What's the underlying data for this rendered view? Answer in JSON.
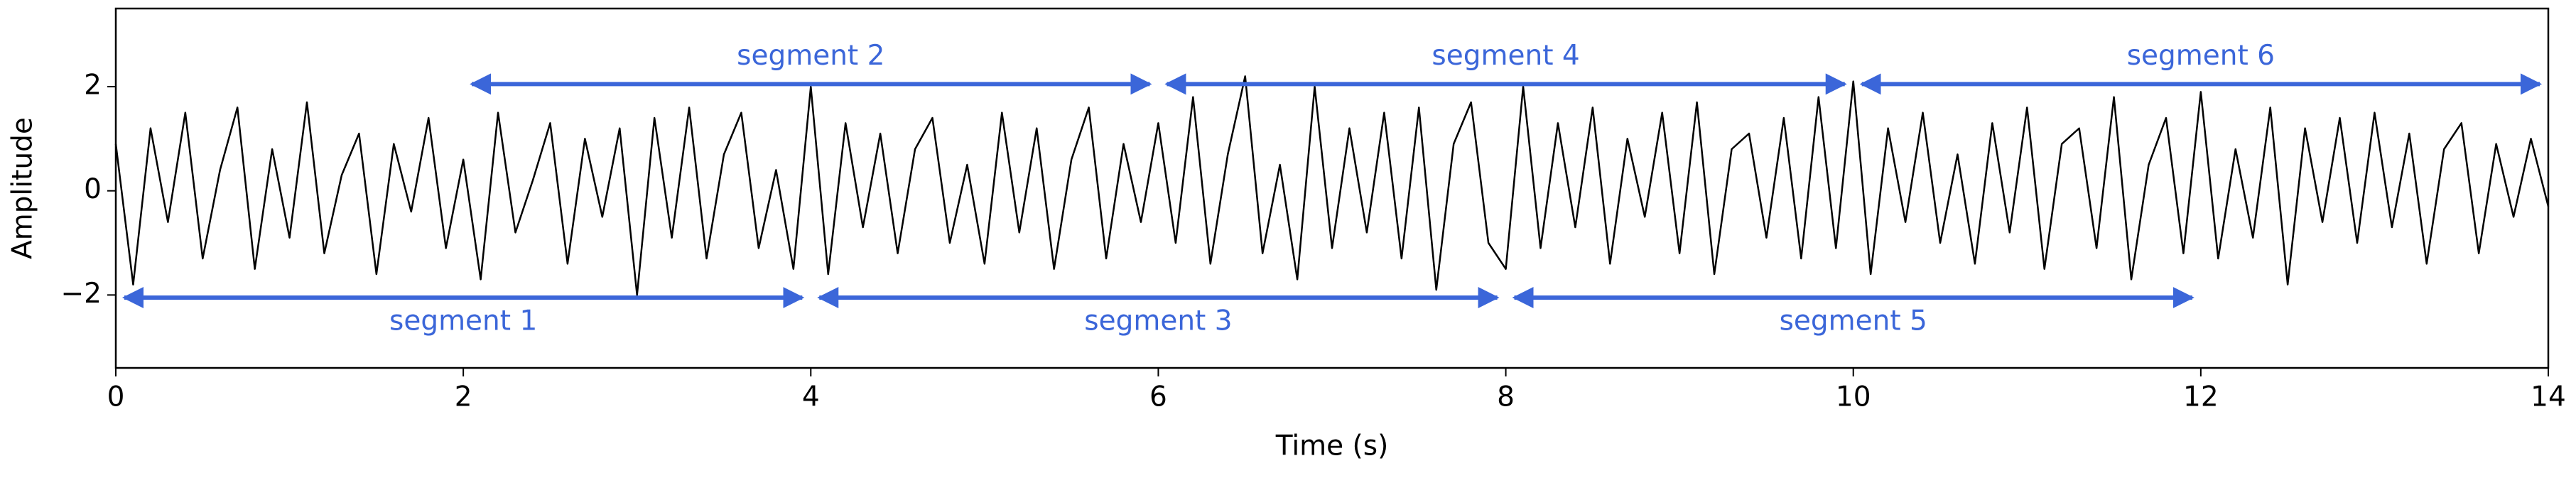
{
  "chart_data": {
    "type": "line",
    "xlabel": "Time (s)",
    "ylabel": "Amplitude",
    "xlim": [
      0,
      14
    ],
    "ylim": [
      -3.4,
      3.5
    ],
    "xticks": [
      0,
      2,
      4,
      6,
      8,
      10,
      12,
      14
    ],
    "yticks": [
      {
        "value": -2,
        "label": "−2"
      },
      0,
      2
    ],
    "series": [
      {
        "color": "#000000",
        "x": [
          0,
          0.1,
          0.2,
          0.3,
          0.4,
          0.5,
          0.6,
          0.7,
          0.8,
          0.9,
          1,
          1.1,
          1.2,
          1.3,
          1.4,
          1.5,
          1.6,
          1.7,
          1.8,
          1.9,
          2,
          2.1,
          2.2,
          2.3,
          2.4,
          2.5,
          2.6,
          2.7,
          2.8,
          2.9,
          3,
          3.1,
          3.2,
          3.3,
          3.4,
          3.5,
          3.6,
          3.7,
          3.8,
          3.9,
          4,
          4.1,
          4.2,
          4.3,
          4.4,
          4.5,
          4.6,
          4.7,
          4.8,
          4.9,
          5,
          5.1,
          5.2,
          5.3,
          5.4,
          5.5,
          5.6,
          5.7,
          5.8,
          5.9,
          6,
          6.1,
          6.2,
          6.3,
          6.4,
          6.5,
          6.6,
          6.7,
          6.8,
          6.9,
          7,
          7.1,
          7.2,
          7.3,
          7.4,
          7.5,
          7.6,
          7.7,
          7.8,
          7.9,
          8,
          8.1,
          8.2,
          8.3,
          8.4,
          8.5,
          8.6,
          8.7,
          8.8,
          8.9,
          9,
          9.1,
          9.2,
          9.3,
          9.4,
          9.5,
          9.6,
          9.7,
          9.8,
          9.9,
          10,
          10.1,
          10.2,
          10.3,
          10.4,
          10.5,
          10.6,
          10.7,
          10.8,
          10.9,
          11,
          11.1,
          11.2,
          11.3,
          11.4,
          11.5,
          11.6,
          11.7,
          11.8,
          11.9,
          12,
          12.1,
          12.2,
          12.3,
          12.4,
          12.5,
          12.6,
          12.7,
          12.8,
          12.9,
          13,
          13.1,
          13.2,
          13.3,
          13.4,
          13.5,
          13.6,
          13.7,
          13.8,
          13.9,
          14
        ],
        "values": [
          0.9,
          -1.8,
          1.2,
          -0.6,
          1.5,
          -1.3,
          0.4,
          1.6,
          -1.5,
          0.8,
          -0.9,
          1.7,
          -1.2,
          0.3,
          1.1,
          -1.6,
          0.9,
          -0.4,
          1.4,
          -1.1,
          0.6,
          -1.7,
          1.5,
          -0.8,
          0.2,
          1.3,
          -1.4,
          1.0,
          -0.5,
          1.2,
          -2.0,
          1.4,
          -0.9,
          1.6,
          -1.3,
          0.7,
          1.5,
          -1.1,
          0.4,
          -1.5,
          2.0,
          -1.6,
          1.3,
          -0.7,
          1.1,
          -1.2,
          0.8,
          1.4,
          -1.0,
          0.5,
          -1.4,
          1.5,
          -0.8,
          1.2,
          -1.5,
          0.6,
          1.6,
          -1.3,
          0.9,
          -0.6,
          1.3,
          -1.0,
          1.8,
          -1.4,
          0.7,
          2.2,
          -1.2,
          0.5,
          -1.7,
          2.0,
          -1.1,
          1.2,
          -0.8,
          1.5,
          -1.3,
          1.6,
          -1.9,
          0.9,
          1.7,
          -1.0,
          -1.5,
          2.0,
          -1.1,
          1.3,
          -0.7,
          1.6,
          -1.4,
          1.0,
          -0.5,
          1.5,
          -1.2,
          1.7,
          -1.6,
          0.8,
          1.1,
          -0.9,
          1.4,
          -1.3,
          1.8,
          -1.1,
          2.1,
          -1.6,
          1.2,
          -0.6,
          1.5,
          -1.0,
          0.7,
          -1.4,
          1.3,
          -0.8,
          1.6,
          -1.5,
          0.9,
          1.2,
          -1.1,
          1.8,
          -1.7,
          0.5,
          1.4,
          -1.2,
          1.9,
          -1.3,
          0.8,
          -0.9,
          1.6,
          -1.8,
          1.2,
          -0.6,
          1.4,
          -1.0,
          1.5,
          -0.7,
          1.1,
          -1.4,
          0.8,
          1.3,
          -1.2,
          0.9,
          -0.5,
          1.0,
          -0.3
        ]
      }
    ],
    "annotation_color": "#3b66d9",
    "annotations": [
      {
        "label": "segment 1",
        "start": 0,
        "end": 4,
        "y": -2.05
      },
      {
        "label": "segment 2",
        "start": 2,
        "end": 6,
        "y": 2.05
      },
      {
        "label": "segment 3",
        "start": 4,
        "end": 8,
        "y": -2.05
      },
      {
        "label": "segment 4",
        "start": 6,
        "end": 10,
        "y": 2.05
      },
      {
        "label": "segment 5",
        "start": 8,
        "end": 12,
        "y": -2.05
      },
      {
        "label": "segment 6",
        "start": 10,
        "end": 14,
        "y": 2.05
      }
    ]
  }
}
